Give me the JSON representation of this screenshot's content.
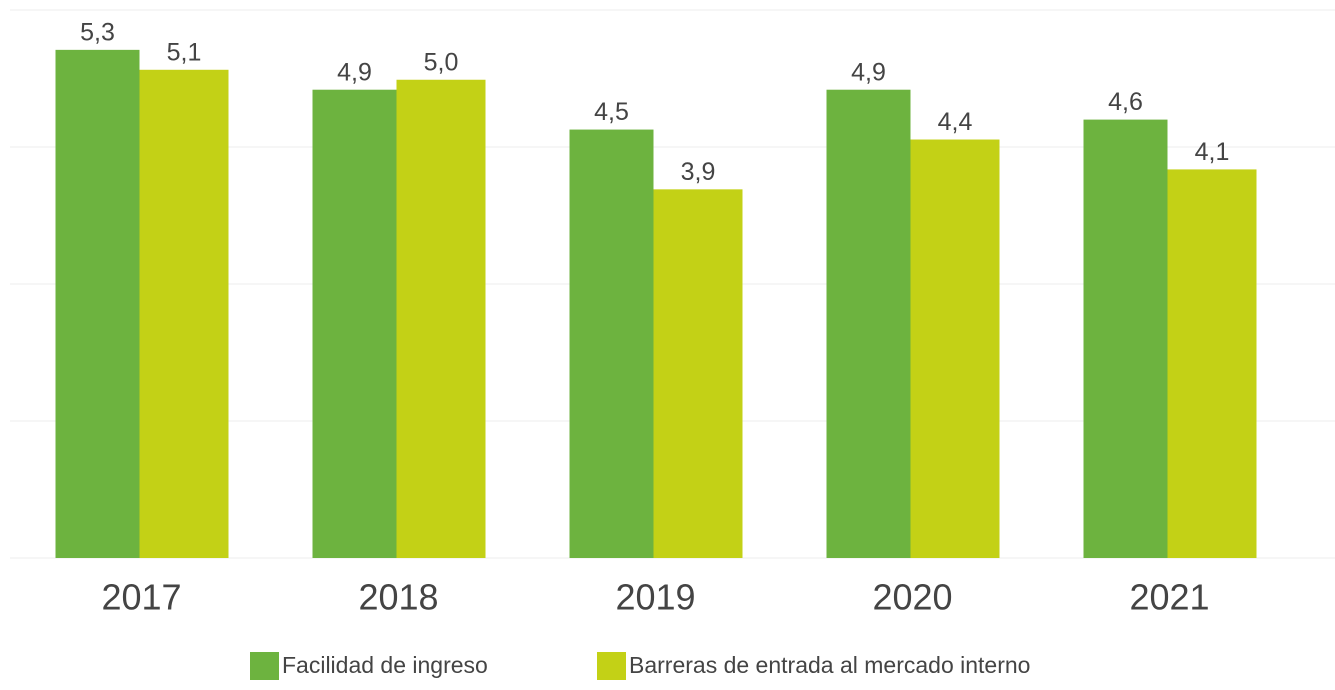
{
  "chart_data": {
    "type": "bar",
    "categories": [
      "2017",
      "2018",
      "2019",
      "2020",
      "2021"
    ],
    "series": [
      {
        "name": "Facilidad de ingreso",
        "color": "#6db33f",
        "values": [
          5.3,
          4.9,
          4.5,
          4.9,
          4.6
        ],
        "value_labels": [
          "5,3",
          "4,9",
          "4,5",
          "4,9",
          "4,6"
        ]
      },
      {
        "name": "Barreras de entrada al mercado interno",
        "color": "#c3d116",
        "values": [
          5.1,
          5.0,
          3.9,
          4.4,
          4.1
        ],
        "value_labels": [
          "5,1",
          "5,0",
          "3,9",
          "4,4",
          "4,1"
        ]
      }
    ],
    "ylim": [
      0.2,
      5.7
    ],
    "yticks": [
      0.2,
      1.575,
      2.95,
      4.325,
      5.7
    ],
    "grid": true,
    "legend": "bottom"
  }
}
